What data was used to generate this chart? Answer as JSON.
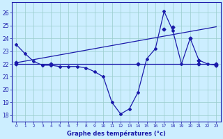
{
  "line1_x": [
    0,
    1,
    2,
    3,
    4,
    5,
    6,
    7,
    8,
    9,
    10,
    11,
    12,
    13,
    14,
    15,
    16,
    17,
    18,
    19,
    20,
    21,
    22,
    23
  ],
  "line1_y": [
    23.5,
    22.8,
    22.2,
    21.9,
    21.9,
    21.8,
    21.8,
    21.8,
    21.7,
    21.4,
    21.0,
    19.0,
    18.1,
    18.5,
    19.8,
    22.4,
    23.2,
    26.1,
    24.6,
    22.0,
    24.0,
    22.3,
    22.0,
    21.9
  ],
  "line2_x": [
    0,
    23
  ],
  "line2_y": [
    22.1,
    24.9
  ],
  "line2_markers_x": [
    0,
    17,
    18,
    20,
    21,
    23
  ],
  "line2_markers_y": [
    22.1,
    24.7,
    24.9,
    24.0,
    22.3,
    21.9
  ],
  "line3_x": [
    0,
    23
  ],
  "line3_y": [
    22.0,
    22.0
  ],
  "line3_markers_x": [
    0,
    4,
    14,
    21,
    23
  ],
  "line3_markers_y": [
    22.0,
    22.0,
    22.0,
    22.0,
    22.0
  ],
  "color": "#1a1aaa",
  "bg_color": "#cceeff",
  "grid_color": "#99cccc",
  "xlabel": "Graphe des températures (°c)",
  "xticks": [
    0,
    1,
    2,
    3,
    4,
    5,
    6,
    7,
    8,
    9,
    10,
    11,
    12,
    13,
    14,
    15,
    16,
    17,
    18,
    19,
    20,
    21,
    22,
    23
  ],
  "yticks": [
    18,
    19,
    20,
    21,
    22,
    23,
    24,
    25,
    26
  ],
  "ylim": [
    17.5,
    26.8
  ],
  "xlim": [
    -0.5,
    23.5
  ]
}
